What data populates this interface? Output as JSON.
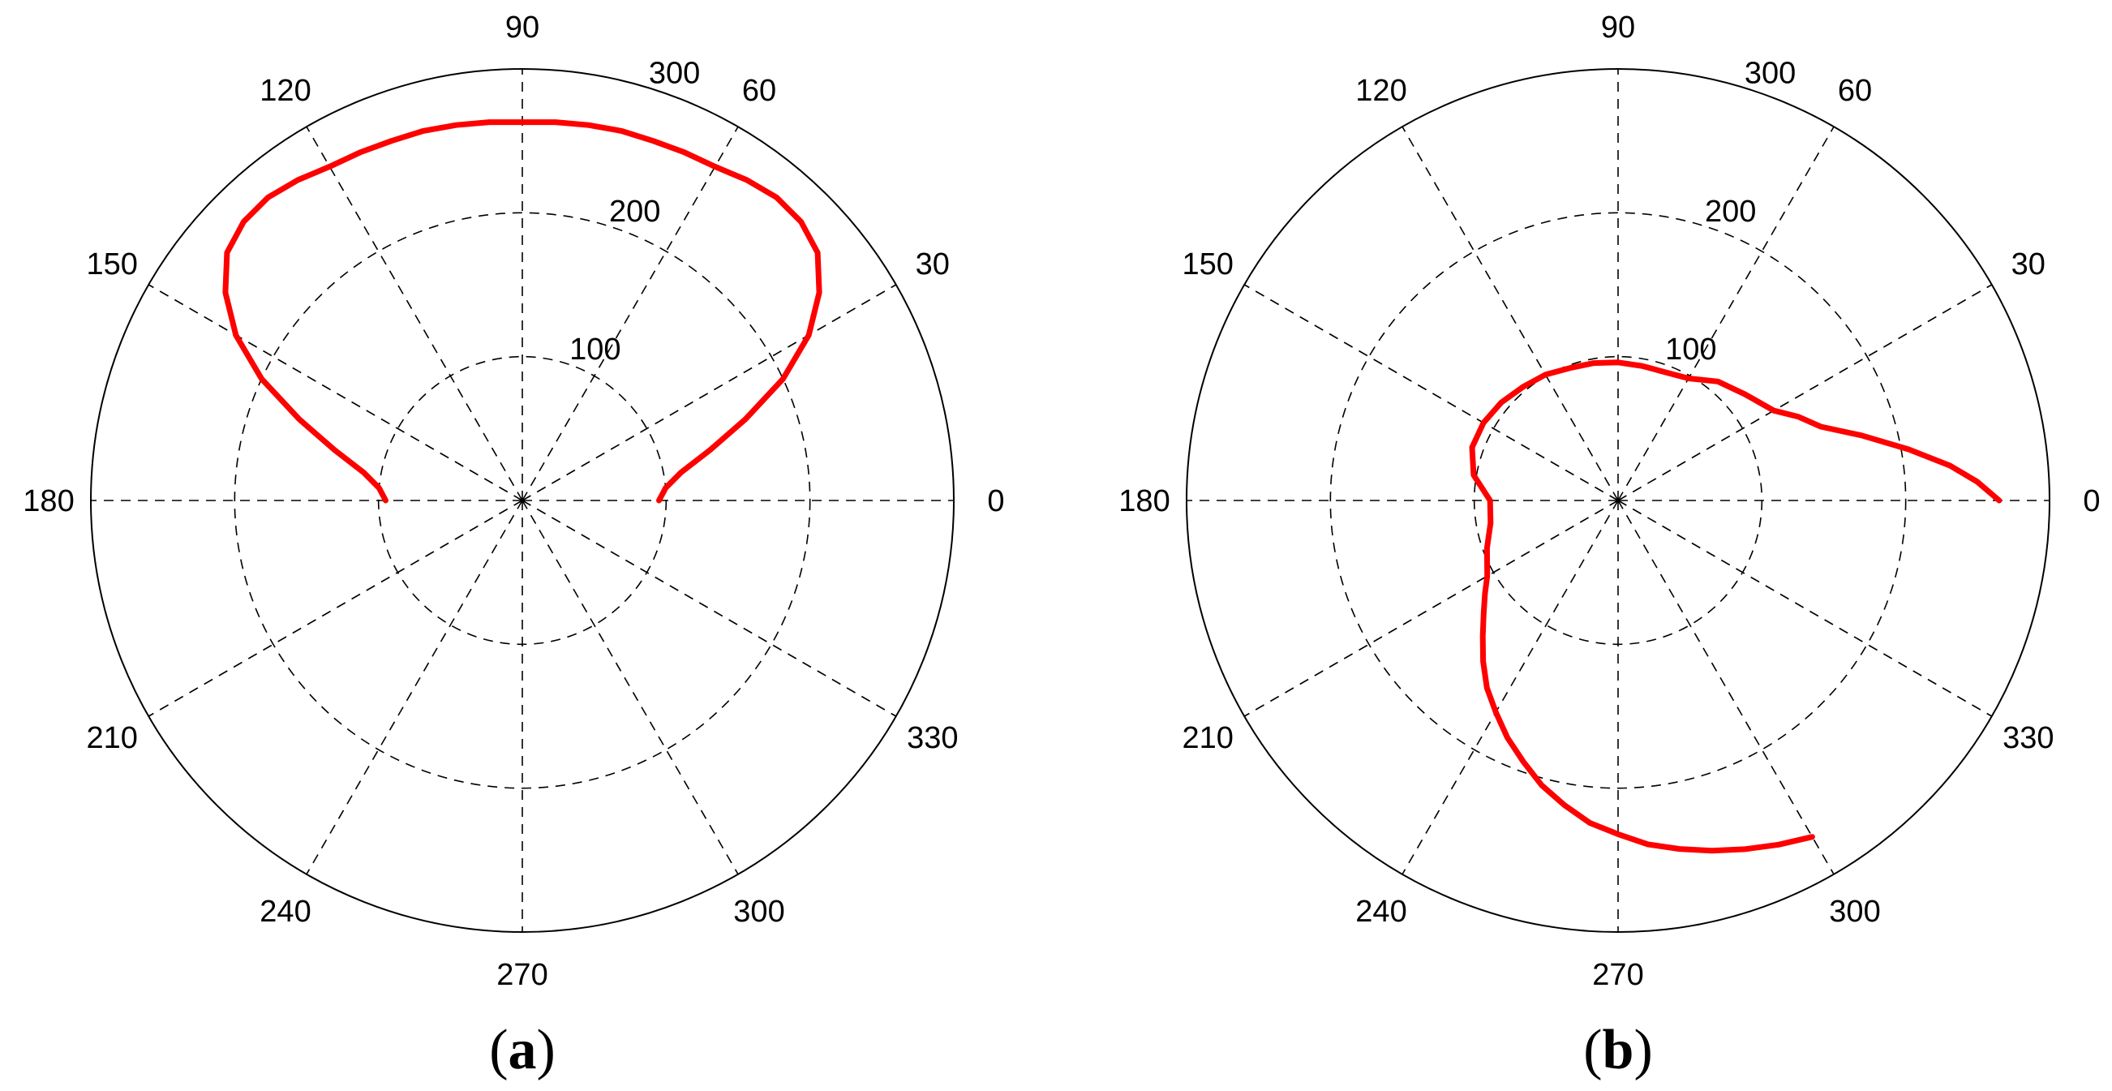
{
  "chart_data": [
    {
      "type": "polar-line",
      "panel_label": "a",
      "theta_unit": "degrees",
      "theta_ticks": [
        0,
        30,
        60,
        90,
        120,
        150,
        180,
        210,
        240,
        270,
        300,
        330
      ],
      "theta_tick_labels": [
        "0",
        "30",
        "60",
        "90",
        "120",
        "150",
        "180",
        "210",
        "240",
        "270",
        "300",
        "330"
      ],
      "r_ticks": [
        100,
        200,
        300
      ],
      "r_tick_labels": [
        "100",
        "200",
        "300"
      ],
      "rlim": [
        0,
        300
      ],
      "grid": true,
      "line_color": "#ff0000",
      "series": [
        {
          "theta": [
            0,
            5,
            10,
            15,
            20,
            25,
            30,
            35,
            40,
            45,
            50,
            55,
            60,
            65,
            70,
            75,
            80,
            85,
            90,
            95,
            100,
            105,
            110,
            115,
            120,
            125,
            130,
            135,
            140,
            145,
            150,
            155,
            160,
            165,
            170,
            175,
            180
          ],
          "r": [
            95,
            100,
            112,
            135,
            165,
            200,
            230,
            252,
            268,
            274,
            275,
            272,
            268,
            267,
            266,
            266,
            265,
            264,
            263,
            264,
            265,
            266,
            266,
            267,
            268,
            272,
            275,
            274,
            268,
            252,
            230,
            200,
            165,
            135,
            112,
            100,
            95
          ]
        }
      ]
    },
    {
      "type": "polar-line",
      "panel_label": "b",
      "theta_unit": "degrees",
      "theta_ticks": [
        0,
        30,
        60,
        90,
        120,
        150,
        180,
        210,
        240,
        270,
        300,
        330
      ],
      "theta_tick_labels": [
        "0",
        "30",
        "60",
        "90",
        "120",
        "150",
        "180",
        "210",
        "240",
        "270",
        "300",
        "330"
      ],
      "r_ticks": [
        100,
        200,
        300
      ],
      "r_tick_labels": [
        "100",
        "200",
        "300"
      ],
      "rlim": [
        0,
        300
      ],
      "grid": true,
      "line_color": "#ff0000",
      "series": [
        {
          "theta": [
            0,
            3,
            6,
            10,
            15,
            20,
            25,
            30,
            40,
            50,
            60,
            70,
            80,
            90,
            100,
            110,
            120,
            130,
            140,
            150,
            160,
            170,
            180,
            190,
            200,
            210,
            215,
            220,
            225,
            230,
            235,
            240,
            245,
            250,
            255,
            260,
            265,
            270,
            275,
            280,
            285,
            290,
            295,
            300
          ],
          "r": [
            265,
            250,
            232,
            205,
            175,
            150,
            138,
            125,
            115,
            108,
            98,
            95,
            95,
            96,
            97,
            98,
            101,
            103,
            106,
            108,
            108,
            102,
            89,
            90,
            97,
            105,
            113,
            122,
            133,
            146,
            159,
            170,
            182,
            193,
            205,
            215,
            225,
            232,
            240,
            246,
            252,
            258,
            264,
            270
          ]
        }
      ]
    }
  ]
}
